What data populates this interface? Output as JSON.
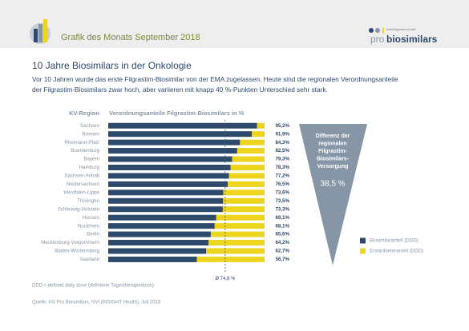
{
  "header": {
    "title": "Grafik des Monats September 2018",
    "logo_small": "Arbeitsgemeinschaft",
    "logo_pro": "pro",
    "logo_name": "biosimilars"
  },
  "headline": "10 Jahre Biosimilars in der Onkologie",
  "intro": [
    "Vor 10 Jahren wurde das erste Filgrastim-Biosimilar von der EMA zugelassen. Heute sind die regionalen Verordnungsanteile",
    "der Filgrastim-Biosimilars zwar hoch, aber variieren mit knapp 40 %-Punkten Unterschied sehr stark."
  ],
  "chart_data": {
    "type": "stacked-barh",
    "category_header": "KV-Region",
    "value_header": "Verordnungsanteile Filgrastim-Biosimilars in %",
    "categories": [
      "Sachsen",
      "Bremen",
      "Rheinland-Pfalz",
      "Brandenburg",
      "Bayern",
      "Hamburg",
      "Sachsen-Anhalt",
      "Niedersachsen",
      "Westfalen-Lippe",
      "Thüringen",
      "Schleswig-Holstein",
      "Hessen",
      "Nordrhein",
      "Berlin",
      "Mecklenburg-Vorpommern",
      "Baden-Württemberg",
      "Saarland"
    ],
    "series": [
      {
        "name": "Biosimilaranteil (DDD)",
        "color": "#2d4a6c",
        "values": [
          95.2,
          91.9,
          84.3,
          82.5,
          79.3,
          78.3,
          77.2,
          76.5,
          73.6,
          73.5,
          73.3,
          69.1,
          68.1,
          65.6,
          64.2,
          62.7,
          56.7
        ],
        "value_labels": [
          "95,2%",
          "91,9%",
          "84,3%",
          "82,5%",
          "79,3%",
          "78,3%",
          "77,2%",
          "76,5%",
          "73,6%",
          "73,5%",
          "73,3%",
          "69,1%",
          "68,1%",
          "65,6%",
          "64,2%",
          "62,7%",
          "56,7%"
        ]
      },
      {
        "name": "Erstanbieteranteil (DDD)",
        "color": "#ecd51c",
        "values": [
          4.8,
          8.1,
          15.7,
          17.5,
          20.7,
          21.7,
          22.8,
          23.5,
          26.4,
          26.5,
          26.7,
          30.9,
          31.9,
          34.4,
          35.8,
          37.3,
          43.3
        ]
      }
    ],
    "xlim": [
      0,
      100
    ],
    "average": {
      "value": 74.8,
      "label": "Ø 74,8 %"
    },
    "callout": {
      "lines": [
        "Differenz der",
        "regionalen",
        "Filgrastim-",
        "Biosimilars-",
        "Versorgung"
      ],
      "value": 38.5,
      "label": "38,5 %"
    }
  },
  "footnote": "DDD = defined daily dose (definierte Tagestherapiedosis)",
  "source": "Quelle: AG Pro Biosimilars, NVI (INSIGHT Health), Juli 2018"
}
